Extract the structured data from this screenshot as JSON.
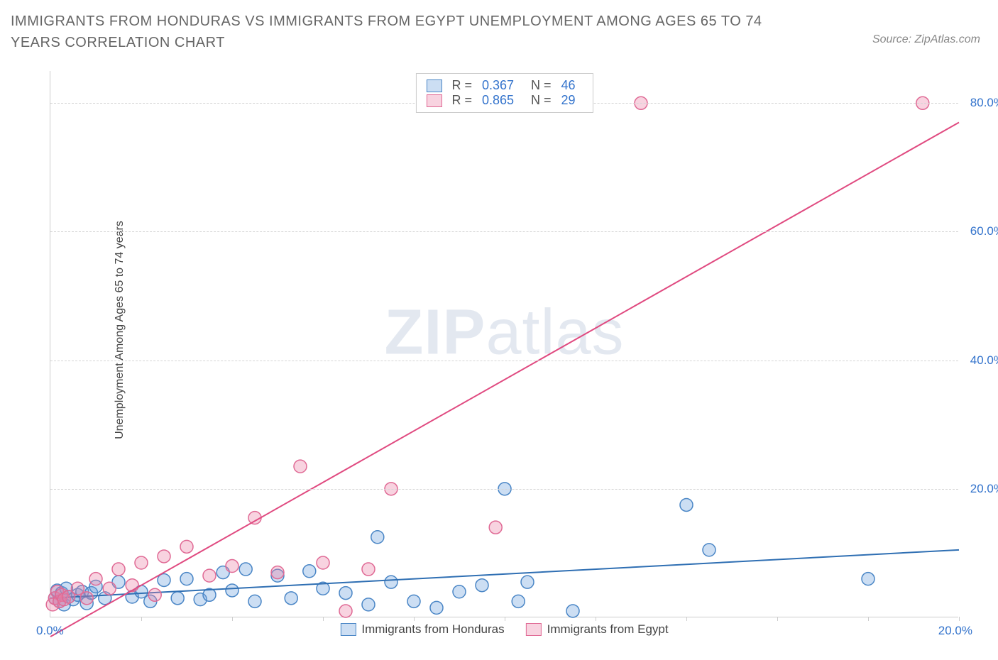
{
  "title": "IMMIGRANTS FROM HONDURAS VS IMMIGRANTS FROM EGYPT UNEMPLOYMENT AMONG AGES 65 TO 74 YEARS CORRELATION CHART",
  "source": "Source: ZipAtlas.com",
  "y_axis_label": "Unemployment Among Ages 65 to 74 years",
  "watermark_bold": "ZIP",
  "watermark_light": "atlas",
  "chart": {
    "type": "scatter-with-regression",
    "xlim": [
      0,
      20
    ],
    "ylim": [
      0,
      85
    ],
    "x_tick_step": 2,
    "y_ticks": [
      20,
      40,
      60,
      80
    ],
    "y_tick_labels": [
      "20.0%",
      "40.0%",
      "60.0%",
      "80.0%"
    ],
    "x_origin_label": "0.0%",
    "x_end_label": "20.0%",
    "grid_color": "#d5d5d5",
    "background_color": "#ffffff",
    "marker_radius": 9,
    "marker_stroke_width": 1.5,
    "line_width": 2,
    "series": [
      {
        "name": "Immigrants from Honduras",
        "color_fill": "rgba(110,160,220,0.35)",
        "color_stroke": "#4a86c6",
        "line_color": "#2f6fb3",
        "r": "0.367",
        "n": "46",
        "regression": {
          "x1": 0,
          "y1": 3.0,
          "x2": 20,
          "y2": 10.5
        },
        "points": [
          [
            0.1,
            3.0
          ],
          [
            0.15,
            4.2
          ],
          [
            0.2,
            2.5
          ],
          [
            0.25,
            3.8
          ],
          [
            0.3,
            2.0
          ],
          [
            0.35,
            4.5
          ],
          [
            0.4,
            3.2
          ],
          [
            0.5,
            2.8
          ],
          [
            0.6,
            3.5
          ],
          [
            0.7,
            4.0
          ],
          [
            0.8,
            2.2
          ],
          [
            0.9,
            3.8
          ],
          [
            1.0,
            4.8
          ],
          [
            1.2,
            3.0
          ],
          [
            1.5,
            5.5
          ],
          [
            1.8,
            3.2
          ],
          [
            2.0,
            4.0
          ],
          [
            2.2,
            2.5
          ],
          [
            2.5,
            5.8
          ],
          [
            2.8,
            3.0
          ],
          [
            3.0,
            6.0
          ],
          [
            3.3,
            2.8
          ],
          [
            3.5,
            3.5
          ],
          [
            3.8,
            7.0
          ],
          [
            4.0,
            4.2
          ],
          [
            4.3,
            7.5
          ],
          [
            4.5,
            2.5
          ],
          [
            5.0,
            6.5
          ],
          [
            5.3,
            3.0
          ],
          [
            5.7,
            7.2
          ],
          [
            6.0,
            4.5
          ],
          [
            6.5,
            3.8
          ],
          [
            7.0,
            2.0
          ],
          [
            7.2,
            12.5
          ],
          [
            7.5,
            5.5
          ],
          [
            8.0,
            2.5
          ],
          [
            8.5,
            1.5
          ],
          [
            9.0,
            4.0
          ],
          [
            9.5,
            5.0
          ],
          [
            10.0,
            20.0
          ],
          [
            10.3,
            2.5
          ],
          [
            10.5,
            5.5
          ],
          [
            11.5,
            1.0
          ],
          [
            14.0,
            17.5
          ],
          [
            14.5,
            10.5
          ],
          [
            18.0,
            6.0
          ]
        ]
      },
      {
        "name": "Immigrants from Egypt",
        "color_fill": "rgba(235,130,165,0.35)",
        "color_stroke": "#e06a95",
        "line_color": "#e04a80",
        "r": "0.865",
        "n": "29",
        "regression": {
          "x1": 0,
          "y1": -3.0,
          "x2": 20,
          "y2": 77.0
        },
        "points": [
          [
            0.05,
            2.0
          ],
          [
            0.1,
            3.0
          ],
          [
            0.15,
            4.0
          ],
          [
            0.2,
            2.5
          ],
          [
            0.25,
            3.5
          ],
          [
            0.3,
            2.8
          ],
          [
            0.4,
            3.2
          ],
          [
            0.6,
            4.5
          ],
          [
            0.8,
            3.0
          ],
          [
            1.0,
            6.0
          ],
          [
            1.3,
            4.5
          ],
          [
            1.5,
            7.5
          ],
          [
            1.8,
            5.0
          ],
          [
            2.0,
            8.5
          ],
          [
            2.3,
            3.5
          ],
          [
            2.5,
            9.5
          ],
          [
            3.0,
            11.0
          ],
          [
            3.5,
            6.5
          ],
          [
            4.0,
            8.0
          ],
          [
            4.5,
            15.5
          ],
          [
            5.0,
            7.0
          ],
          [
            5.5,
            23.5
          ],
          [
            6.0,
            8.5
          ],
          [
            6.5,
            1.0
          ],
          [
            7.0,
            7.5
          ],
          [
            7.5,
            20.0
          ],
          [
            9.8,
            14.0
          ],
          [
            13.0,
            80.0
          ],
          [
            19.2,
            80.0
          ]
        ]
      }
    ]
  },
  "legend_top": {
    "r_label": "R =",
    "n_label": "N ="
  },
  "legend_bottom": {
    "items": [
      "Immigrants from Honduras",
      "Immigrants from Egypt"
    ]
  }
}
